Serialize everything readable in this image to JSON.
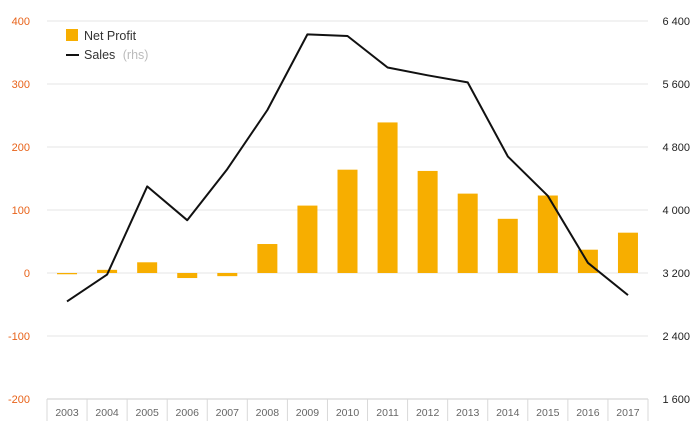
{
  "chart_data": {
    "type": "bar+line",
    "categories": [
      "2003",
      "2004",
      "2005",
      "2006",
      "2007",
      "2008",
      "2009",
      "2010",
      "2011",
      "2012",
      "2013",
      "2014",
      "2015",
      "2016",
      "2017"
    ],
    "series": [
      {
        "name": "Net Profit",
        "type": "bar",
        "axis": "left",
        "color": "#f7ae00",
        "values": [
          -2,
          5,
          17,
          -8,
          -5,
          46,
          107,
          164,
          239,
          162,
          126,
          86,
          123,
          37,
          64
        ]
      },
      {
        "name": "Sales",
        "type": "line",
        "axis": "right",
        "color": "#111111",
        "values": [
          2840,
          3180,
          4300,
          3870,
          4520,
          5270,
          6230,
          6210,
          5810,
          5710,
          5620,
          4680,
          4180,
          3330,
          2920
        ]
      }
    ],
    "left_axis": {
      "ylim": [
        -200,
        400
      ],
      "ticks": [
        "-200",
        "-100",
        "0",
        "100",
        "200",
        "300",
        "400"
      ],
      "color": "#e8631a"
    },
    "right_axis": {
      "ylim": [
        1600,
        6400
      ],
      "ticks": [
        "1 600",
        "2 400",
        "3 200",
        "4 000",
        "4 800",
        "5 600",
        "6 400"
      ],
      "color": "#222222"
    },
    "legend": {
      "position": "top-left",
      "items": [
        {
          "label": "Net Profit",
          "suffix": ""
        },
        {
          "label": "Sales",
          "suffix": "(rhs)"
        }
      ]
    },
    "grid": true
  }
}
